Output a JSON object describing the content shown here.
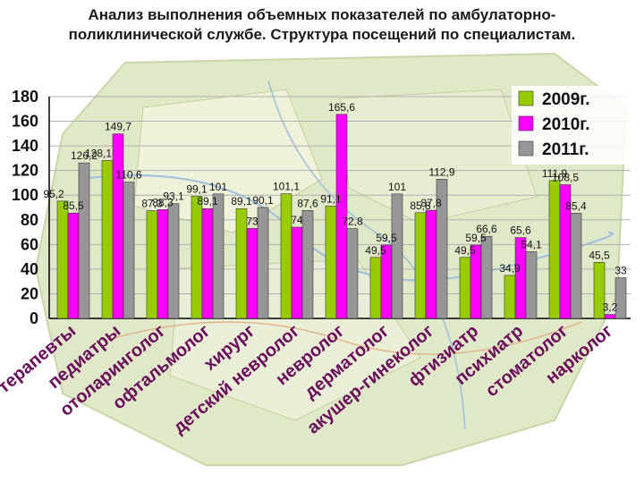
{
  "colors": {
    "s2009": "#99cc00",
    "s2010": "#ff00ff",
    "s2011": "#969696",
    "map_background": "#dfe9c8",
    "label_text": "#6b0a5c"
  },
  "chart_data": {
    "type": "bar",
    "title": "Анализ выполнения объемных показателей по амбулаторно-поликлинической службе. Структура посещений по специалистам.",
    "ylim": [
      0,
      180
    ],
    "yticks": [
      0,
      20,
      40,
      60,
      80,
      100,
      120,
      140,
      160,
      180
    ],
    "grid": true,
    "legend_position": "top-right",
    "categories": [
      "терапевты",
      "педиатры",
      "отоларинголог",
      "офтальмолог",
      "хирург",
      "детский невролог",
      "невролог",
      "дерматолог",
      "акушер-гинеколог",
      "фтизиатр",
      "психиатр",
      "стоматолог",
      "нарколог"
    ],
    "series": [
      {
        "name": "2009г.",
        "values": [
          95.2,
          128.1,
          87.3,
          99.1,
          89.1,
          101.1,
          91.1,
          49.5,
          85.8,
          49.5,
          34.9,
          111.9,
          45.5
        ],
        "labels": [
          "95,2",
          "128,1",
          "87,3",
          "99,1",
          "89,1",
          "101,1",
          "91,1",
          "49,5",
          "85,8",
          "49,5",
          "34,9",
          "111,9",
          "45,5"
        ]
      },
      {
        "name": "2010г.",
        "values": [
          85.5,
          149.7,
          88.3,
          89.1,
          73,
          74,
          165.6,
          59.5,
          87.8,
          59.5,
          65.6,
          108.5,
          3.2
        ],
        "labels": [
          "85,5",
          "149,7",
          "88,3",
          "89,1",
          "73",
          "74",
          "165,6",
          "59,5",
          "87,8",
          "59,5",
          "65,6",
          "108,5",
          "3,2"
        ]
      },
      {
        "name": "2011г.",
        "values": [
          126.2,
          110.6,
          93.1,
          101,
          90.1,
          87.6,
          72.8,
          101,
          112.9,
          66.6,
          54.1,
          85.4,
          33
        ],
        "labels": [
          "126,2",
          "110,6",
          "93,1",
          "101",
          "90,1",
          "87,6",
          "72,8",
          "101",
          "112,9",
          "66,6",
          "54,1",
          "85,4",
          "33"
        ]
      }
    ]
  }
}
